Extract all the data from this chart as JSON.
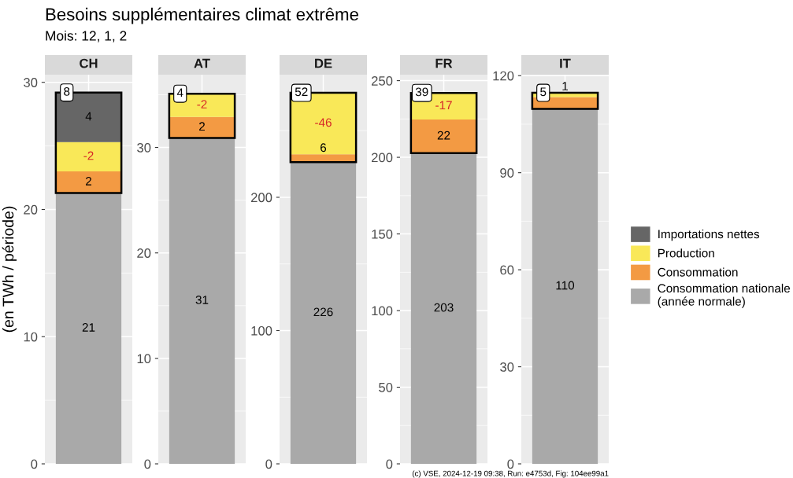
{
  "chart_data": [
    {
      "type": "bar",
      "stacked": true,
      "title": "Besoins supplémentaires climat extrême",
      "subtitle": "Mois: 12, 1, 2",
      "ylabel": "(en TWh / période)",
      "categories": [
        "CH"
      ],
      "ylim": [
        0,
        30.6
      ],
      "yticks": [
        0,
        10,
        20,
        30
      ],
      "grid": true,
      "legend": "right",
      "annotations": [
        {
          "text": "-2",
          "x": "CH",
          "y": 25.3
        },
        {
          "text": "8",
          "x": "CH",
          "y": 29.2
        }
      ],
      "series": [
        {
          "name": "Consommation nationale\n(année normale)",
          "color": "#a9a9a9",
          "values": [
            21.3
          ],
          "value_labels": [
            "21"
          ]
        },
        {
          "name": "Consommation",
          "color": "#f39a43",
          "values": [
            1.7
          ],
          "value_labels": [
            "2"
          ]
        },
        {
          "name": "Production",
          "color": "#f9e858",
          "values": [
            2.3
          ],
          "value_labels": [
            null
          ]
        },
        {
          "name": "Importations nettes",
          "color": "#666666",
          "values": [
            3.9
          ],
          "value_labels": [
            "4"
          ]
        }
      ]
    },
    {
      "type": "bar",
      "stacked": true,
      "categories": [
        "AT"
      ],
      "ylim": [
        0,
        36.9
      ],
      "yticks": [
        0,
        10,
        20,
        30
      ],
      "grid": true,
      "annotations": [
        {
          "text": "-2",
          "x": "AT",
          "y": 35.1
        },
        {
          "text": "4",
          "x": "AT",
          "y": 35.1
        }
      ],
      "series": [
        {
          "name": "Consommation nationale\n(année normale)",
          "color": "#a9a9a9",
          "values": [
            30.9
          ],
          "value_labels": [
            "31"
          ]
        },
        {
          "name": "Consommation",
          "color": "#f39a43",
          "values": [
            2.0
          ],
          "value_labels": [
            "2"
          ]
        },
        {
          "name": "Production",
          "color": "#f9e858",
          "values": [
            2.2
          ],
          "value_labels": [
            null
          ]
        }
      ]
    },
    {
      "type": "bar",
      "stacked": true,
      "categories": [
        "DE"
      ],
      "ylim": [
        0,
        292
      ],
      "yticks": [
        0,
        100,
        200
      ],
      "grid": true,
      "annotations": [
        {
          "text": "-46",
          "x": "DE",
          "y": 278.4
        },
        {
          "text": "52",
          "x": "DE",
          "y": 278.4
        }
      ],
      "series": [
        {
          "name": "Consommation nationale\n(année normale)",
          "color": "#a9a9a9",
          "values": [
            226.4
          ],
          "value_labels": [
            "226"
          ]
        },
        {
          "name": "Consommation",
          "color": "#f39a43",
          "values": [
            5.9
          ],
          "value_labels": [
            "6"
          ]
        },
        {
          "name": "Production",
          "color": "#f9e858",
          "values": [
            46.1
          ],
          "value_labels": [
            null
          ]
        }
      ]
    },
    {
      "type": "bar",
      "stacked": true,
      "categories": [
        "FR"
      ],
      "ylim": [
        0,
        253.9
      ],
      "yticks": [
        0,
        50,
        100,
        150,
        200,
        250
      ],
      "grid": true,
      "annotations": [
        {
          "text": "-17",
          "x": "FR",
          "y": 242.0
        },
        {
          "text": "39",
          "x": "FR",
          "y": 242.0
        }
      ],
      "series": [
        {
          "name": "Consommation nationale\n(année normale)",
          "color": "#a9a9a9",
          "values": [
            202.7
          ],
          "value_labels": [
            "203"
          ]
        },
        {
          "name": "Consommation",
          "color": "#f39a43",
          "values": [
            21.9
          ],
          "value_labels": [
            "22"
          ]
        },
        {
          "name": "Production",
          "color": "#f9e858",
          "values": [
            17.4
          ],
          "value_labels": [
            null
          ]
        }
      ]
    },
    {
      "type": "bar",
      "stacked": true,
      "categories": [
        "IT"
      ],
      "ylim": [
        0,
        120.3
      ],
      "yticks": [
        0,
        30,
        60,
        90,
        120
      ],
      "grid": true,
      "annotations": [
        {
          "text": "5",
          "x": "IT",
          "y": 114.7
        },
        "(c) VSE, 2024-12-19 09:38, Run: e4753d, Fig: 104ee99a1"
      ],
      "series": [
        {
          "name": "Consommation nationale\n(année normale)",
          "color": "#a9a9a9",
          "values": [
            109.7
          ],
          "value_labels": [
            "110"
          ]
        },
        {
          "name": "Consommation",
          "color": "#f39a43",
          "values": [
            3.7
          ],
          "value_labels": [
            null
          ]
        },
        {
          "name": "Production",
          "color": "#f9e858",
          "values": [
            1.3
          ],
          "value_labels": [
            "1"
          ]
        }
      ]
    }
  ]
}
